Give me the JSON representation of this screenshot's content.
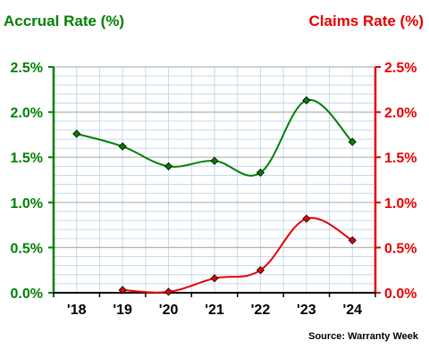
{
  "chart_data": {
    "type": "line",
    "categories": [
      "'18",
      "'19",
      "'20",
      "'21",
      "'22",
      "'23",
      "'24"
    ],
    "left_axis": {
      "title": "Accrual Rate (%)",
      "ticks": [
        "0.0%",
        "0.5%",
        "1.0%",
        "1.5%",
        "2.0%",
        "2.5%"
      ],
      "ylim": [
        0,
        2.5
      ]
    },
    "right_axis": {
      "title": "Claims Rate (%)",
      "ticks": [
        "0.0%",
        "0.5%",
        "1.0%",
        "1.5%",
        "2.0%",
        "2.5%"
      ],
      "ylim": [
        0,
        2.5
      ]
    },
    "series": [
      {
        "axis": "left",
        "values": [
          1.76,
          1.62,
          1.4,
          1.46,
          1.33,
          2.13,
          1.67
        ]
      },
      {
        "axis": "right",
        "values": [
          null,
          0.03,
          0.01,
          0.16,
          0.25,
          0.82,
          0.58
        ]
      }
    ],
    "grid": true,
    "source": "Source: Warranty Week"
  },
  "colors": {
    "accrual": "#008000",
    "claims": "#e60000",
    "major_grid": "#b3b3b3",
    "minor_grid": "#c5d9ef"
  }
}
